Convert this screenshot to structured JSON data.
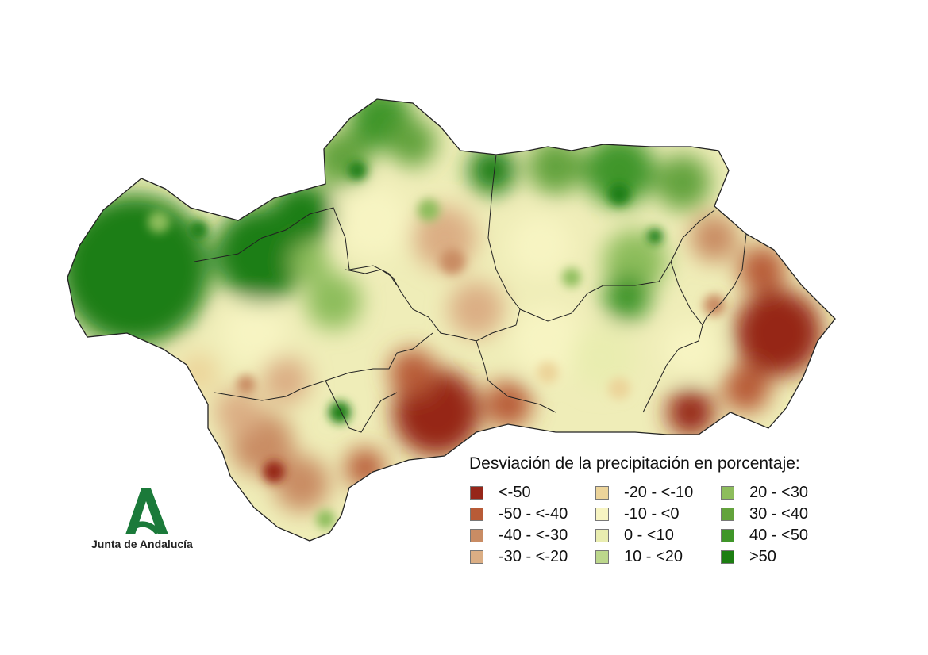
{
  "map": {
    "region": "Andalucía",
    "palette": {
      "deep_red": "#962619",
      "brown": "#b85b37",
      "tan": "#c98c64",
      "light_tan": "#dbae84",
      "sand": "#ecd49a",
      "cream": "#f7f4c2",
      "pale_green": "#e9edb0",
      "yellow_green": "#bcd78c",
      "light_green": "#8dbd5c",
      "green": "#63a33c",
      "mid_green": "#3f9629",
      "dark_green": "#1c7e12",
      "border": "#222222"
    }
  },
  "legend": {
    "title": "Desviación de la precipitación en porcentaje:",
    "items": [
      {
        "label": "<-50",
        "color": "#962619"
      },
      {
        "label": "-50 - <-40",
        "color": "#b85b37"
      },
      {
        "label": "-40 - <-30",
        "color": "#c98c64"
      },
      {
        "label": "-30 - <-20",
        "color": "#dbae84"
      },
      {
        "label": "-20 - <-10",
        "color": "#ecd49a"
      },
      {
        "label": "-10 - <0",
        "color": "#f7f4c2"
      },
      {
        "label": "0 - <10",
        "color": "#e9edb0"
      },
      {
        "label": "10 - <20",
        "color": "#bcd78c"
      },
      {
        "label": "20 - <30",
        "color": "#8dbd5c"
      },
      {
        "label": "30 - <40",
        "color": "#63a33c"
      },
      {
        "label": "40 - <50",
        "color": "#3f9629"
      },
      {
        "label": ">50",
        "color": "#1c7e12"
      }
    ]
  },
  "logo": {
    "text": "Junta de Andalucía",
    "color": "#1b7a3a"
  }
}
